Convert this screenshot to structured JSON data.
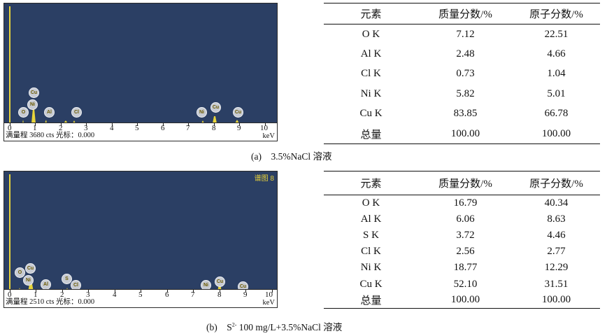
{
  "panels": [
    {
      "tag": "",
      "axis_info": "满量程 3680 cts 光标：0.000",
      "axis_unit": "keV",
      "ticks": [
        "0",
        "1",
        "2",
        "3",
        "4",
        "5",
        "6",
        "7",
        "8",
        "9",
        "10"
      ],
      "peak_labels": [
        "O",
        "Cu",
        "Ni",
        "Al",
        "Cl",
        "Ni",
        "Cu",
        "Cu"
      ],
      "table": {
        "headers": [
          "元素",
          "质量分数/%",
          "原子分数/%"
        ],
        "rows": [
          [
            "O K",
            "7.12",
            "22.51"
          ],
          [
            "Al K",
            "2.48",
            "4.66"
          ],
          [
            "Cl K",
            "0.73",
            "1.04"
          ],
          [
            "Ni K",
            "5.82",
            "5.01"
          ],
          [
            "Cu K",
            "83.85",
            "66.78"
          ],
          [
            "总量",
            "100.00",
            "100.00"
          ]
        ]
      },
      "caption": "(a)　3.5%NaCl 溶液"
    },
    {
      "tag": "谱图 8",
      "axis_info": "满量程 2510 cts 光标：0.000",
      "axis_unit": "keV",
      "ticks": [
        "0",
        "1",
        "2",
        "3",
        "4",
        "5",
        "6",
        "7",
        "8",
        "9",
        "10"
      ],
      "peak_labels": [
        "O",
        "Cu",
        "Ni",
        "Al",
        "S",
        "Cl",
        "Ni",
        "Cu",
        "Cu"
      ],
      "table": {
        "headers": [
          "元素",
          "质量分数/%",
          "原子分数/%"
        ],
        "rows": [
          [
            "O K",
            "16.79",
            "40.34"
          ],
          [
            "Al K",
            "6.06",
            "8.63"
          ],
          [
            "S K",
            "3.72",
            "4.46"
          ],
          [
            "Cl K",
            "2.56",
            "2.77"
          ],
          [
            "Ni K",
            "18.77",
            "12.29"
          ],
          [
            "Cu K",
            "52.10",
            "31.51"
          ],
          [
            "总量",
            "100.00",
            "100.00"
          ]
        ]
      },
      "caption_prefix": "(b)　S",
      "caption_sup": "2-",
      "caption_rest": " 100 mg/L+3.5%NaCl 溶液"
    }
  ]
}
